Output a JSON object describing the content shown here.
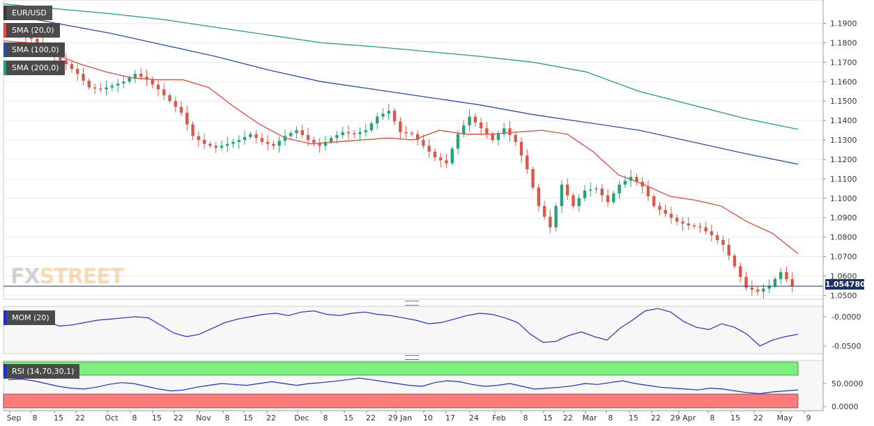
{
  "header": {
    "symbol": "EUR/USD",
    "legend": [
      {
        "label": "SMA (20,0)",
        "color": "#e8473d"
      },
      {
        "label": "SMA (100,0)",
        "color": "#2a4db5"
      },
      {
        "label": "SMA (200,0)",
        "color": "#1fa07a"
      }
    ],
    "watermark_fx": "FX",
    "watermark_street": "STREET",
    "last_price": "1.054780"
  },
  "colors": {
    "up": "#26a574",
    "down": "#d9584b",
    "sma20": "#e8473d",
    "sma100": "#2a4db5",
    "sma200": "#1fa07a",
    "mom": "#1b2fd8",
    "rsi": "#1b2fd8",
    "rsi_over": "#7cf07c",
    "rsi_under": "#ff7b7b"
  },
  "x_labels": [
    "Sep",
    "8",
    "15",
    "22",
    "Oct",
    "8",
    "15",
    "22",
    "Nov",
    "8",
    "15",
    "22",
    "Dec",
    "8",
    "15",
    "22",
    "29 Jan",
    "10",
    "17",
    "24",
    "Feb",
    "8",
    "15",
    "22",
    "Mar",
    "8",
    "15",
    "22",
    "29 Apr",
    "8",
    "15",
    "22",
    "May",
    "9"
  ],
  "mom_panel": {
    "label": "MOM (20)",
    "ticks": [
      "-0.0000",
      "-0.0500"
    ]
  },
  "rsi_panel": {
    "label": "RSI (14,70,30,1)",
    "ticks": [
      "50.0000",
      "0.0000"
    ]
  },
  "chart_data": {
    "type": "candlestick",
    "title": "EUR/USD",
    "period": "daily",
    "y_ticks": [
      "1.1900",
      "1.1800",
      "1.1700",
      "1.1600",
      "1.1500",
      "1.1400",
      "1.1300",
      "1.1200",
      "1.1100",
      "1.1000",
      "1.0900",
      "1.0800",
      "1.0700",
      "1.0600",
      "1.0500"
    ],
    "ylim": [
      1.048,
      1.202
    ],
    "sma20_anchors": [
      1.181,
      1.18,
      1.174,
      1.169,
      1.165,
      1.162,
      1.161,
      1.161,
      1.157,
      1.147,
      1.138,
      1.131,
      1.128,
      1.129,
      1.13,
      1.131,
      1.13,
      1.135,
      1.133,
      1.133,
      1.134,
      1.135,
      1.133,
      1.124,
      1.112,
      1.107,
      1.101,
      1.099,
      1.096,
      1.088,
      1.082,
      1.0715
    ],
    "sma100_anchors": [
      1.195,
      1.19,
      1.185,
      1.179,
      1.173,
      1.166,
      1.16,
      1.156,
      1.152,
      1.148,
      1.143,
      1.139,
      1.135,
      1.129,
      1.123,
      1.1175
    ],
    "sma200_anchors": [
      1.2,
      1.1975,
      1.195,
      1.192,
      1.188,
      1.184,
      1.18,
      1.178,
      1.1755,
      1.173,
      1.17,
      1.165,
      1.155,
      1.148,
      1.141,
      1.1355
    ],
    "closes": [
      1.187,
      1.184,
      1.182,
      1.177,
      1.173,
      1.169,
      1.164,
      1.157,
      1.156,
      1.158,
      1.16,
      1.164,
      1.161,
      1.156,
      1.15,
      1.144,
      1.132,
      1.128,
      1.126,
      1.128,
      1.13,
      1.133,
      1.129,
      1.127,
      1.132,
      1.135,
      1.13,
      1.127,
      1.131,
      1.134,
      1.133,
      1.135,
      1.142,
      1.145,
      1.134,
      1.133,
      1.127,
      1.121,
      1.118,
      1.133,
      1.142,
      1.136,
      1.13,
      1.136,
      1.129,
      1.115,
      1.096,
      1.085,
      1.107,
      1.096,
      1.104,
      1.105,
      1.098,
      1.107,
      1.111,
      1.106,
      1.096,
      1.092,
      1.088,
      1.086,
      1.085,
      1.081,
      1.076,
      1.065,
      1.054,
      1.052,
      1.055,
      1.062,
      1.0548
    ],
    "mom": [
      0.004,
      0.002,
      -0.004,
      -0.008,
      -0.016,
      -0.014,
      -0.01,
      -0.006,
      -0.004,
      -0.002,
      0.0,
      -0.002,
      -0.015,
      -0.028,
      -0.034,
      -0.03,
      -0.02,
      -0.01,
      -0.004,
      0.0,
      0.004,
      0.006,
      0.002,
      0.008,
      0.01,
      0.004,
      0.002,
      0.006,
      0.008,
      0.004,
      0.002,
      -0.002,
      -0.006,
      -0.012,
      -0.01,
      -0.004,
      0.002,
      0.006,
      0.004,
      -0.002,
      -0.01,
      -0.03,
      -0.044,
      -0.042,
      -0.032,
      -0.026,
      -0.034,
      -0.04,
      -0.02,
      -0.006,
      0.01,
      0.014,
      0.008,
      -0.008,
      -0.018,
      -0.022,
      -0.012,
      -0.018,
      -0.03,
      -0.05,
      -0.04,
      -0.034,
      -0.03
    ],
    "rsi": [
      58,
      60,
      56,
      50,
      44,
      40,
      38,
      42,
      48,
      52,
      50,
      44,
      38,
      34,
      36,
      42,
      46,
      50,
      48,
      46,
      50,
      54,
      50,
      46,
      50,
      52,
      55,
      58,
      62,
      58,
      54,
      50,
      46,
      44,
      52,
      56,
      54,
      48,
      44,
      46,
      50,
      44,
      38,
      40,
      42,
      45,
      50,
      48,
      52,
      56,
      50,
      46,
      42,
      40,
      38,
      36,
      40,
      38,
      34,
      30,
      28,
      32,
      34,
      36
    ]
  }
}
